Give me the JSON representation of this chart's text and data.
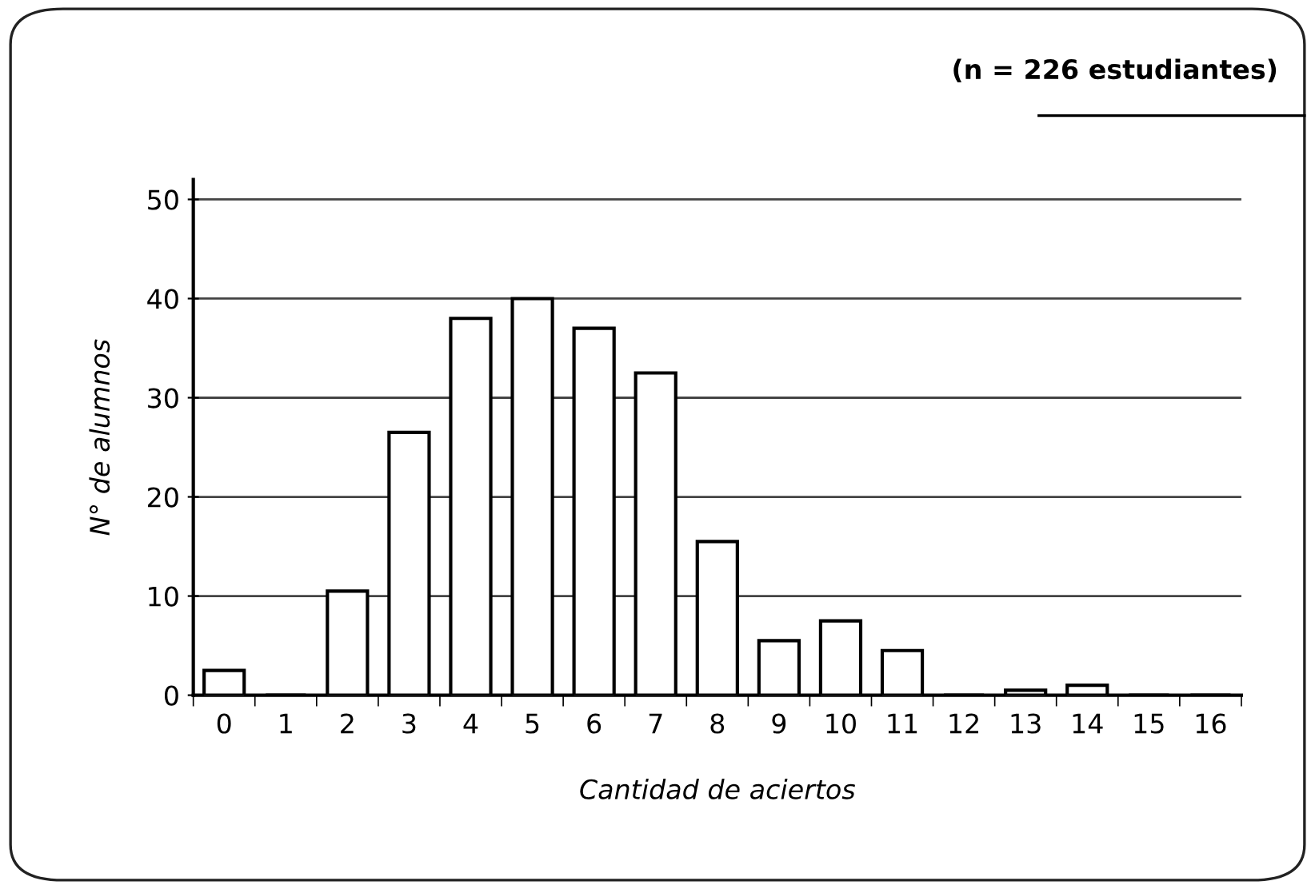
{
  "chart_data": {
    "type": "bar",
    "title": "(n = 226 estudiantes)",
    "xlabel": "Cantidad de aciertos",
    "ylabel": "N° de alumnos",
    "categories": [
      "0",
      "1",
      "2",
      "3",
      "4",
      "5",
      "6",
      "7",
      "8",
      "9",
      "10",
      "11",
      "12",
      "13",
      "14",
      "15",
      "16"
    ],
    "values": [
      2.5,
      0,
      10.5,
      26.5,
      38,
      40,
      37,
      32.5,
      15.5,
      5.5,
      7.5,
      4.5,
      0,
      0.5,
      1,
      0,
      0
    ],
    "color": "#ffffff",
    "ylim": [
      0,
      52
    ],
    "yticks": [
      0,
      10,
      20,
      30,
      40,
      50
    ],
    "grid": "y",
    "legend": false
  }
}
